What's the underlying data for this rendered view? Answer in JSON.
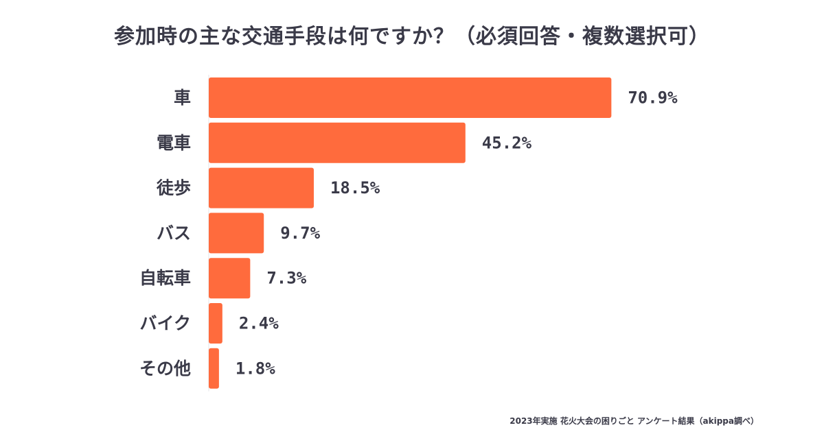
{
  "chart_data": {
    "type": "bar",
    "orientation": "horizontal",
    "title": "参加時の主な交通手段は何ですか？（必須回答・複数選択可）",
    "categories": [
      "車",
      "電車",
      "徒歩",
      "バス",
      "自転車",
      "バイク",
      "その他"
    ],
    "values": [
      70.9,
      45.2,
      18.5,
      9.7,
      7.3,
      2.4,
      1.8
    ],
    "value_labels": [
      "70.9%",
      "45.2%",
      "18.5%",
      "9.7%",
      "7.3%",
      "2.4%",
      "1.8%"
    ],
    "xlim": [
      0,
      100
    ],
    "xlabel": "",
    "ylabel": "",
    "grid": false,
    "legend": "none",
    "bar_color": "#ff6b3d"
  },
  "footer": {
    "source": "2023年実施 花火大会の困りごと アンケート結果（akippa調べ）"
  }
}
